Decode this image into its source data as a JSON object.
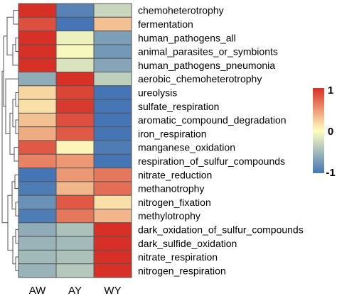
{
  "chart_data": {
    "type": "heatmap",
    "title": "",
    "xlabel": "",
    "ylabel": "",
    "columns": [
      "AW",
      "AY",
      "WY"
    ],
    "rows": [
      "chemoheterotrophy",
      "fermentation",
      "human_pathogens_all",
      "animal_parasites_or_symbionts",
      "human_pathogens_pneumonia",
      "aerobic_chemoheterotrophy",
      "ureolysis",
      "sulfate_respiration",
      "aromatic_compound_degradation",
      "iron_respiration",
      "manganese_oxidation",
      "respiration_of_sulfur_compounds",
      "nitrate_reduction",
      "methanotrophy",
      "nitrogen_fixation",
      "methylotrophy",
      "dark_oxidation_of_sulfur_compounds",
      "dark_sulfide_oxidation",
      "nitrate_respiration",
      "nitrogen_respiration"
    ],
    "values": [
      [
        1.0,
        -0.9,
        -0.3
      ],
      [
        0.85,
        -1.0,
        0.3
      ],
      [
        1.0,
        -0.1,
        -0.7
      ],
      [
        1.0,
        -0.05,
        -0.75
      ],
      [
        1.0,
        -0.2,
        -0.65
      ],
      [
        -0.6,
        1.0,
        -0.35
      ],
      [
        0.2,
        0.9,
        -1.0
      ],
      [
        0.15,
        0.95,
        -1.0
      ],
      [
        0.3,
        0.85,
        -1.0
      ],
      [
        0.4,
        0.8,
        -1.0
      ],
      [
        0.8,
        0.05,
        -0.95
      ],
      [
        0.6,
        0.5,
        -1.0
      ],
      [
        -1.0,
        0.5,
        0.65
      ],
      [
        -0.95,
        0.35,
        0.7
      ],
      [
        -0.8,
        0.8,
        0.15
      ],
      [
        -0.95,
        0.65,
        0.35
      ],
      [
        -0.6,
        -0.45,
        1.0
      ],
      [
        -0.55,
        -0.5,
        1.0
      ],
      [
        -0.5,
        -0.45,
        1.0
      ],
      [
        -0.55,
        -0.4,
        1.0
      ]
    ],
    "colorscale": {
      "min": -1,
      "mid": 0,
      "max": 1,
      "low": "#4575b4",
      "middle": "#ffffbf",
      "high": "#d73027"
    },
    "legend": {
      "placement": "right",
      "ticks": [
        "1",
        "0",
        "-1"
      ]
    },
    "grid": true,
    "dendrogram": "rows"
  }
}
